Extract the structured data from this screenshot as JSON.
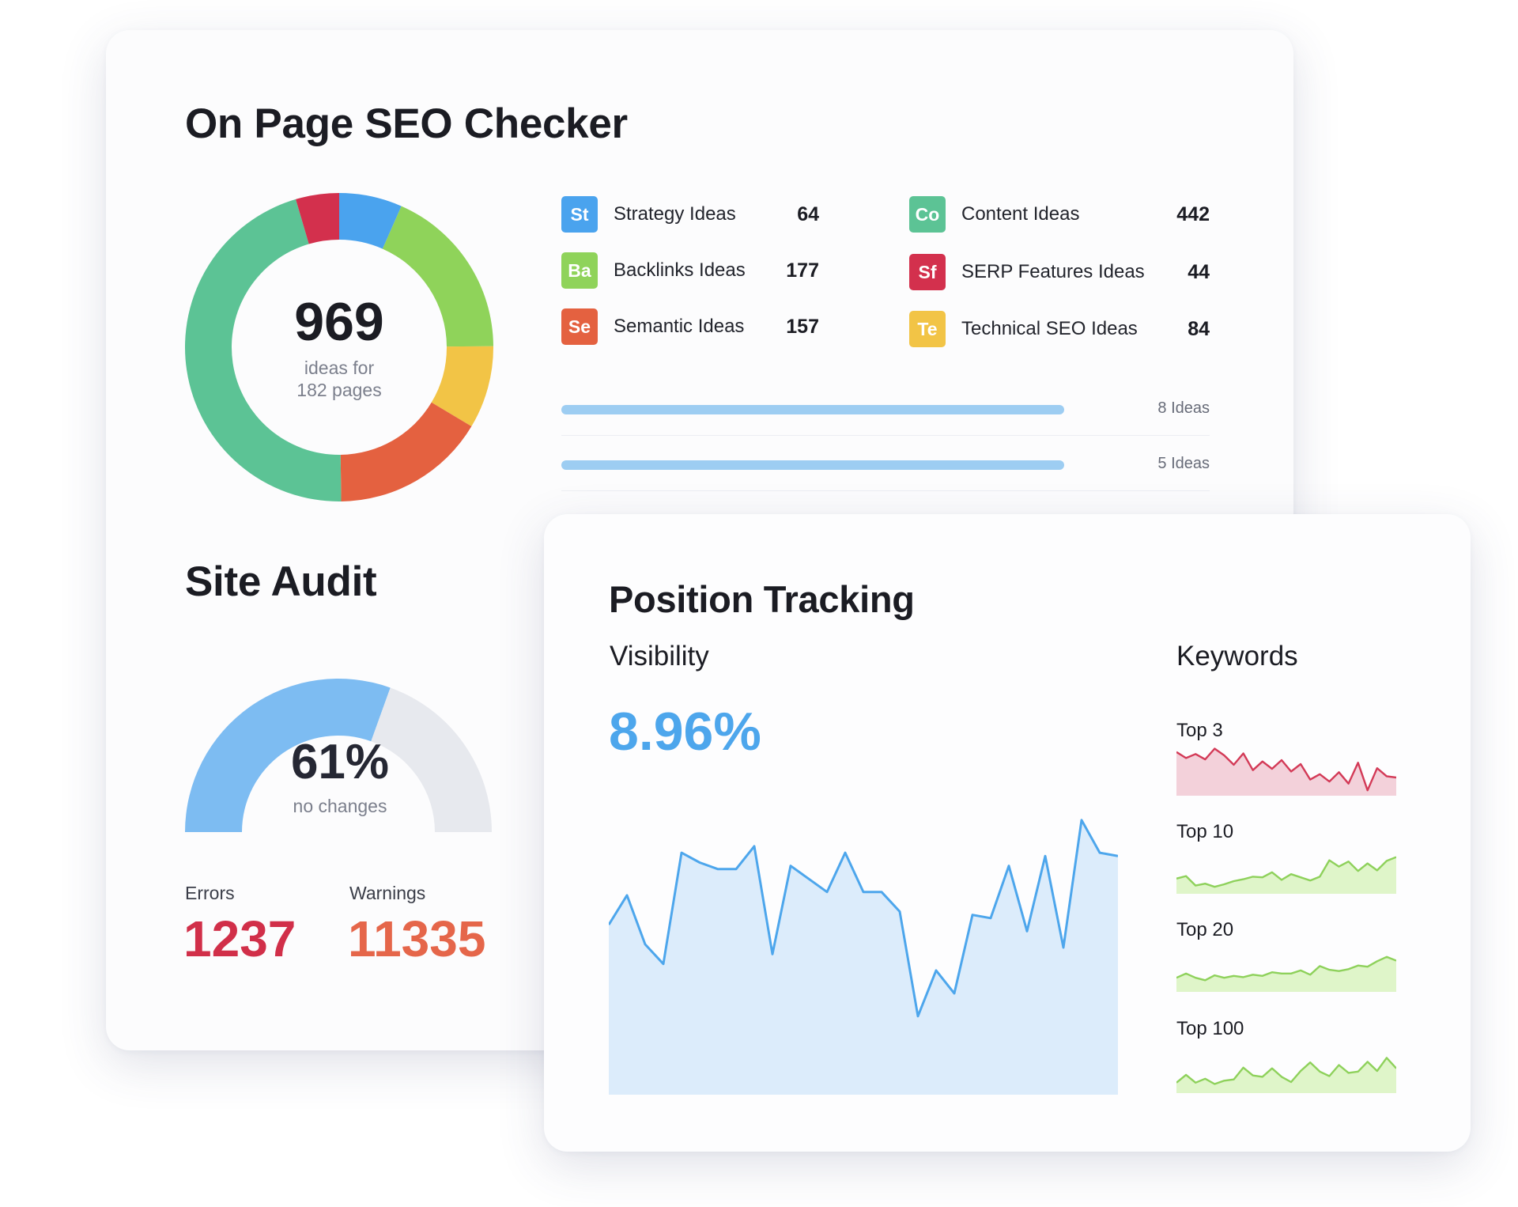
{
  "seo_checker": {
    "title": "On Page SEO Checker",
    "total": "969",
    "total_caption_line1": "ideas for",
    "total_caption_line2": "182 pages",
    "ideas": [
      {
        "abbr": "St",
        "label": "Strategy Ideas",
        "value": "64",
        "color": "#4aa3ee"
      },
      {
        "abbr": "Ba",
        "label": "Backlinks Ideas",
        "value": "177",
        "color": "#8fd35a"
      },
      {
        "abbr": "Se",
        "label": "Semantic Ideas",
        "value": "157",
        "color": "#e46140"
      },
      {
        "abbr": "Co",
        "label": "Content Ideas",
        "value": "442",
        "color": "#5cc395"
      },
      {
        "abbr": "Sf",
        "label": "SERP Features Ideas",
        "value": "44",
        "color": "#d3304d"
      },
      {
        "abbr": "Te",
        "label": "Technical SEO Ideas",
        "value": "84",
        "color": "#f2c446"
      }
    ],
    "bars": [
      {
        "label": "8 Ideas"
      },
      {
        "label": "5 Ideas"
      }
    ]
  },
  "site_audit": {
    "title": "Site Audit",
    "percent": "61%",
    "percent_value": 61,
    "caption": "no changes",
    "errors_label": "Errors",
    "errors_value": "1237",
    "warnings_label": "Warnings",
    "warnings_value": "11335",
    "colors": {
      "filled": "#7dbcf2",
      "empty": "#e7e9ee",
      "errors": "#d12f49",
      "warnings": "#e5664a"
    }
  },
  "position_tracking": {
    "title": "Position Tracking",
    "visibility_label": "Visibility",
    "visibility_value": "8.96%",
    "keywords_label": "Keywords",
    "keyword_groups": [
      {
        "label": "Top 3",
        "color": "#d33a57",
        "fill": "#f3d1da"
      },
      {
        "label": "Top 10",
        "color": "#8ed15b",
        "fill": "#dff5c9"
      },
      {
        "label": "Top 20",
        "color": "#8ed15b",
        "fill": "#dff5c9"
      },
      {
        "label": "Top 100",
        "color": "#8ed15b",
        "fill": "#dff5c9"
      }
    ],
    "colors": {
      "visibility_line": "#4da6ec",
      "visibility_fill": "#dcecfb"
    }
  },
  "chart_data": [
    {
      "type": "pie",
      "categories": [
        "Strategy Ideas",
        "Backlinks Ideas",
        "Semantic Ideas",
        "Content Ideas",
        "SERP Features Ideas",
        "Technical SEO Ideas"
      ],
      "values": [
        64,
        177,
        157,
        442,
        44,
        84
      ],
      "center_label": "969"
    },
    {
      "type": "area",
      "values": [
        5.2,
        6.1,
        4.6,
        4.0,
        7.4,
        7.1,
        6.9,
        6.9,
        7.6,
        4.3,
        7.0,
        6.6,
        6.2,
        7.4,
        6.2,
        6.2,
        5.6,
        2.4,
        3.8,
        3.1,
        5.5,
        5.4,
        7.0,
        5.0,
        7.3,
        4.5,
        8.4,
        7.4,
        7.3
      ],
      "ylim": [
        0,
        9
      ]
    },
    {
      "type": "area",
      "series": [
        {
          "name": "Top 3",
          "values": [
            6.5,
            5.6,
            6.2,
            5.4,
            7.0,
            6.0,
            4.6,
            6.3,
            3.8,
            5.1,
            4.0,
            5.3,
            3.6,
            4.7,
            2.4,
            3.2,
            2.1,
            3.5,
            1.8,
            4.9,
            0.8,
            4.1,
            2.9,
            2.7
          ]
        },
        {
          "name": "Top 10",
          "values": [
            2.4,
            2.8,
            1.3,
            1.6,
            1.1,
            1.5,
            2.0,
            2.3,
            2.7,
            2.6,
            3.4,
            2.2,
            3.1,
            2.6,
            2.1,
            2.7,
            5.3,
            4.3,
            5.1,
            3.6,
            4.8,
            3.7,
            5.2,
            5.8
          ]
        },
        {
          "name": "Top 20",
          "values": [
            2.3,
            3.0,
            2.3,
            1.9,
            2.7,
            2.3,
            2.6,
            2.4,
            2.8,
            2.6,
            3.2,
            3.0,
            3.0,
            3.5,
            2.8,
            4.2,
            3.6,
            3.4,
            3.7,
            4.3,
            4.1,
            5.0,
            5.7,
            5.1
          ]
        },
        {
          "name": "Top 100",
          "values": [
            1.6,
            2.8,
            1.6,
            2.2,
            1.4,
            1.9,
            2.1,
            3.9,
            2.7,
            2.5,
            3.8,
            2.5,
            1.7,
            3.4,
            4.7,
            3.3,
            2.6,
            4.3,
            3.1,
            3.3,
            4.8,
            3.4,
            5.4,
            3.8
          ]
        }
      ]
    }
  ]
}
